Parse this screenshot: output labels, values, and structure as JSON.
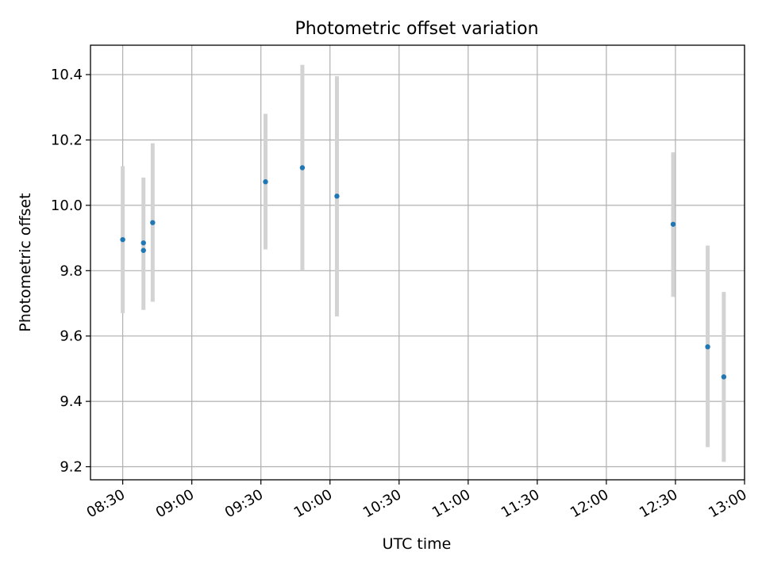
{
  "chart_data": {
    "type": "scatter",
    "title": "Photometric offset variation",
    "xlabel": "UTC time",
    "ylabel": "Photometric offset",
    "x_tick_labels": [
      "08:30",
      "09:00",
      "09:30",
      "10:00",
      "10:30",
      "11:00",
      "11:30",
      "12:00",
      "12:30",
      "13:00"
    ],
    "y_tick_labels": [
      "9.2",
      "9.4",
      "9.6",
      "9.8",
      "10.0",
      "10.2",
      "10.4"
    ],
    "xlim": [
      "08:16",
      "13:00"
    ],
    "ylim": [
      9.16,
      10.49
    ],
    "grid": true,
    "marker_color": "#1f77b4",
    "errorbar_color": "#d3d3d3",
    "points": [
      {
        "x": "08:30",
        "y": 9.895,
        "err_low": 9.67,
        "err_high": 10.12
      },
      {
        "x": "08:39",
        "y": 9.885,
        "err_low": 9.68,
        "err_high": 10.085
      },
      {
        "x": "08:39",
        "y": 9.862,
        "err_low": null,
        "err_high": null
      },
      {
        "x": "08:43",
        "y": 9.947,
        "err_low": 9.705,
        "err_high": 10.19
      },
      {
        "x": "09:32",
        "y": 10.072,
        "err_low": 9.865,
        "err_high": 10.28
      },
      {
        "x": "09:48",
        "y": 10.115,
        "err_low": 9.8,
        "err_high": 10.43
      },
      {
        "x": "10:03",
        "y": 10.028,
        "err_low": 9.66,
        "err_high": 10.395
      },
      {
        "x": "12:29",
        "y": 9.942,
        "err_low": 9.72,
        "err_high": 10.162
      },
      {
        "x": "12:44",
        "y": 9.567,
        "err_low": 9.26,
        "err_high": 9.877
      },
      {
        "x": "12:51",
        "y": 9.475,
        "err_low": 9.215,
        "err_high": 9.735
      }
    ]
  }
}
